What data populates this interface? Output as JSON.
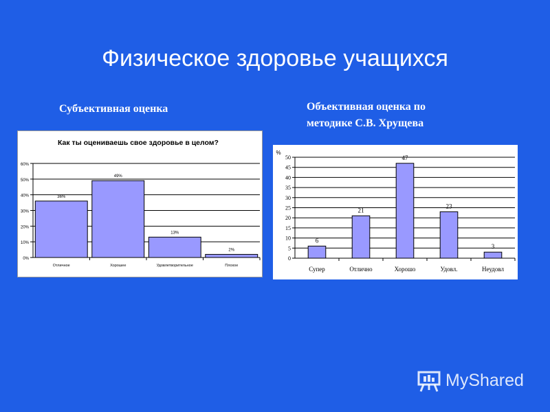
{
  "slide": {
    "title": "Физическое здоровье учащихся",
    "left_subtitle": "Субъективная оценка",
    "right_subtitle": "Объективная оценка по методике С.В. Хрущева",
    "watermark": "MyShared"
  },
  "colors": {
    "background": "#1f5ee6",
    "bar_fill": "#9999ff",
    "bar_stroke": "#000000"
  },
  "chart_data": [
    {
      "type": "bar",
      "title": "Как ты оцениваешь свое здоровье в целом?",
      "categories": [
        "Отличное",
        "Хорошее",
        "Удовлетворительное",
        "Плохое"
      ],
      "values": [
        36,
        49,
        13,
        2
      ],
      "value_labels": [
        "36%",
        "49%",
        "13%",
        "2%"
      ],
      "ylim": [
        0,
        60
      ],
      "yticks": [
        0,
        10,
        20,
        30,
        40,
        50,
        60
      ],
      "ytick_labels": [
        "0%",
        "10%",
        "20%",
        "30%",
        "40%",
        "50%",
        "60%"
      ],
      "grid": true
    },
    {
      "type": "bar",
      "ylabel": "%",
      "categories": [
        "Супер",
        "Отлично",
        "Хорошо",
        "Удовл.",
        "Неудовл"
      ],
      "values": [
        6,
        21,
        47,
        23,
        3
      ],
      "value_labels": [
        "6",
        "21",
        "47",
        "23",
        "3"
      ],
      "ylim": [
        0,
        50
      ],
      "yticks": [
        0,
        5,
        10,
        15,
        20,
        25,
        30,
        35,
        40,
        45,
        50
      ],
      "ytick_labels": [
        "0",
        "5",
        "10",
        "15",
        "20",
        "25",
        "30",
        "35",
        "40",
        "45",
        "50"
      ],
      "grid": true
    }
  ]
}
